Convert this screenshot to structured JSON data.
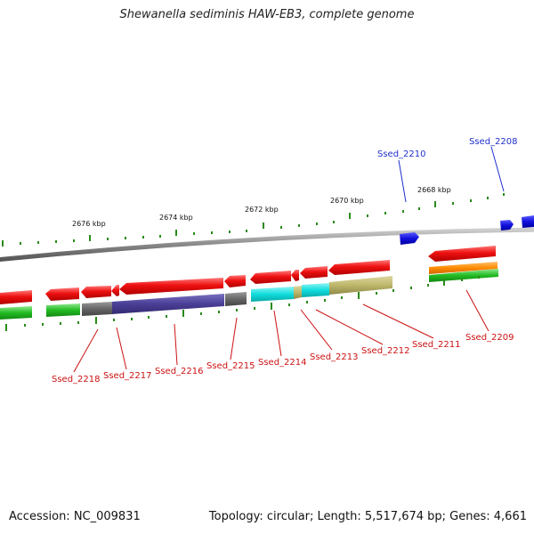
{
  "title": "Shewanella sediminis HAW-EB3, complete genome",
  "footer": {
    "accession": "Accession: NC_009831",
    "summary": "Topology: circular; Length: 5,517,674 bp; Genes: 4,661"
  },
  "scale_labels": [
    "2676 kbp",
    "2674 kbp",
    "2672 kbp",
    "2670 kbp",
    "2668 kbp"
  ],
  "gene_labels_top": [
    "Ssed_2210",
    "Ssed_2208"
  ],
  "gene_labels_bottom": [
    "Ssed_2218",
    "Ssed_2217",
    "Ssed_2216",
    "Ssed_2215",
    "Ssed_2214",
    "Ssed_2213",
    "Ssed_2212",
    "Ssed_2211",
    "Ssed_2209"
  ],
  "colors": {
    "cds": "#ee1111",
    "forward_gene": "#1010dd",
    "backbone": "#888888",
    "tick": "#2a8a1a",
    "green": "#22bb22",
    "gray": "#666666",
    "purple": "#4a3f96",
    "cyan": "#11dddd",
    "khaki": "#bdb76b",
    "orange": "#ff8c00"
  }
}
